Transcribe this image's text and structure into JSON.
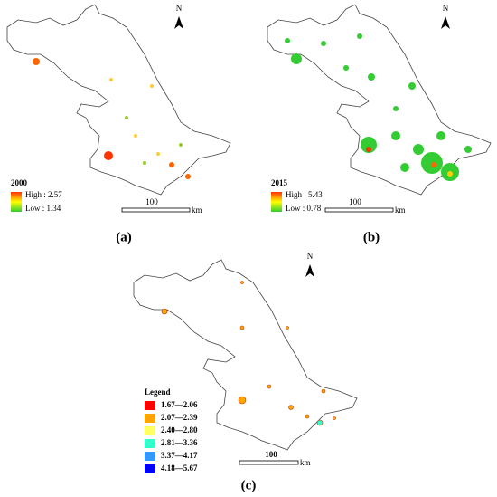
{
  "panels": [
    {
      "label": "(a)",
      "north": "N",
      "legend_title": "2000",
      "legend_high": "High : 2.57",
      "legend_low": "Low : 1.34",
      "scale": "100",
      "scale_unit": "km"
    },
    {
      "label": "(b)",
      "north": "N",
      "legend_title": "2015",
      "legend_high": "High : 5.43",
      "legend_low": "Low : 0.78",
      "scale": "100",
      "scale_unit": "km"
    },
    {
      "label": "(c)",
      "north": "N",
      "legend_title": "Legend",
      "scale": "100",
      "scale_unit": "km",
      "legend_items": [
        {
          "label": "1.67—2.06",
          "color": "#ff0000"
        },
        {
          "label": "2.07—2.39",
          "color": "#ffa500"
        },
        {
          "label": "2.40—2.80",
          "color": "#ffff66"
        },
        {
          "label": "2.81—3.36",
          "color": "#33ffcc"
        },
        {
          "label": "3.37—4.17",
          "color": "#3399ff"
        },
        {
          "label": "4.18—5.67",
          "color": "#0000ff"
        }
      ]
    }
  ]
}
